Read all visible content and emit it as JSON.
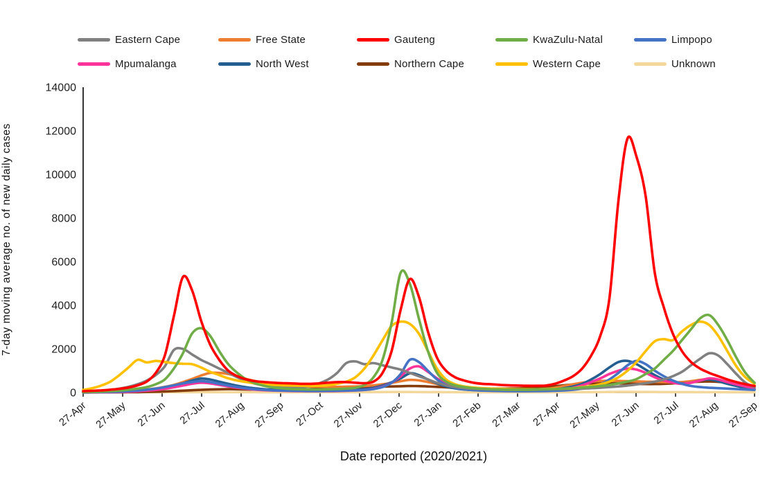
{
  "chart_data": {
    "type": "line",
    "title": "",
    "xlabel": "Date reported (2020/2021)",
    "ylabel": "7-day moving average no. of new daily cases",
    "ylim": [
      0,
      14000
    ],
    "ytick_step": 2000,
    "grid": false,
    "legend_position": "top",
    "x_description": "Weekly samples from 27-Apr-2020 to 27-Sep-2021 (75 points per series)",
    "x_tick_labels": [
      "27-Apr",
      "27-May",
      "27-Jun",
      "27-Jul",
      "27-Aug",
      "27-Sep",
      "27-Oct",
      "27-Nov",
      "27-Dec",
      "27-Jan",
      "27-Feb",
      "27-Mar",
      "27-Apr",
      "27-May",
      "27-Jun",
      "27-Jul",
      "27-Aug",
      "27-Sep"
    ],
    "draw_order": [
      "Unknown",
      "Northern Cape",
      "Free State",
      "North West",
      "Mpumalanga",
      "Limpopo",
      "Eastern Cape",
      "Western Cape",
      "KwaZulu-Natal",
      "Gauteng"
    ],
    "series": [
      {
        "name": "Eastern Cape",
        "color": "#808080",
        "values": [
          30,
          50,
          80,
          120,
          180,
          260,
          380,
          550,
          800,
          1200,
          1950,
          2000,
          1750,
          1500,
          1300,
          1100,
          900,
          700,
          520,
          400,
          320,
          270,
          250,
          240,
          250,
          300,
          420,
          600,
          900,
          1350,
          1430,
          1300,
          1350,
          1250,
          1150,
          1050,
          900,
          750,
          600,
          450,
          330,
          250,
          200,
          170,
          150,
          140,
          130,
          120,
          120,
          120,
          130,
          140,
          150,
          160,
          170,
          180,
          200,
          220,
          250,
          280,
          320,
          370,
          430,
          500,
          600,
          750,
          950,
          1250,
          1550,
          1800,
          1700,
          1300,
          850,
          450,
          250
        ]
      },
      {
        "name": "Free State",
        "color": "#ED7D31",
        "values": [
          15,
          20,
          30,
          40,
          55,
          75,
          100,
          140,
          190,
          260,
          350,
          480,
          620,
          780,
          900,
          900,
          850,
          750,
          620,
          520,
          440,
          380,
          340,
          310,
          290,
          280,
          270,
          260,
          260,
          270,
          280,
          300,
          330,
          380,
          440,
          520,
          580,
          560,
          480,
          390,
          310,
          250,
          210,
          180,
          160,
          150,
          145,
          140,
          140,
          145,
          150,
          170,
          220,
          300,
          380,
          450,
          500,
          530,
          540,
          530,
          520,
          510,
          500,
          490,
          480,
          470,
          480,
          520,
          580,
          620,
          580,
          500,
          420,
          360,
          300
        ]
      },
      {
        "name": "Gauteng",
        "color": "#FF0000",
        "values": [
          60,
          80,
          100,
          130,
          170,
          230,
          330,
          500,
          900,
          1700,
          3500,
          5300,
          4700,
          3300,
          2200,
          1500,
          1000,
          750,
          600,
          520,
          480,
          450,
          430,
          420,
          400,
          400,
          420,
          450,
          480,
          480,
          450,
          430,
          500,
          900,
          1900,
          3800,
          5200,
          4400,
          2800,
          1600,
          1000,
          700,
          550,
          450,
          400,
          380,
          350,
          330,
          320,
          310,
          310,
          320,
          400,
          550,
          750,
          1100,
          1700,
          2600,
          4300,
          8800,
          11650,
          10800,
          9000,
          5500,
          3900,
          2700,
          1900,
          1400,
          1100,
          900,
          750,
          600,
          480,
          380,
          300
        ]
      },
      {
        "name": "KwaZulu-Natal",
        "color": "#70AD47",
        "values": [
          20,
          30,
          40,
          60,
          90,
          130,
          180,
          250,
          380,
          600,
          1100,
          1800,
          2700,
          2950,
          2600,
          1900,
          1300,
          900,
          600,
          420,
          300,
          230,
          190,
          160,
          150,
          140,
          140,
          150,
          160,
          180,
          220,
          350,
          700,
          1500,
          3200,
          5500,
          5000,
          3400,
          1900,
          900,
          500,
          330,
          250,
          200,
          170,
          150,
          140,
          130,
          130,
          130,
          140,
          150,
          160,
          180,
          200,
          230,
          260,
          300,
          350,
          420,
          500,
          620,
          850,
          1100,
          1500,
          1900,
          2400,
          2900,
          3400,
          3550,
          3100,
          2400,
          1600,
          900,
          450
        ]
      },
      {
        "name": "Limpopo",
        "color": "#4472C4",
        "values": [
          10,
          15,
          20,
          30,
          40,
          60,
          90,
          130,
          180,
          250,
          330,
          420,
          480,
          520,
          480,
          400,
          320,
          250,
          190,
          150,
          120,
          100,
          90,
          80,
          75,
          70,
          70,
          75,
          80,
          90,
          100,
          120,
          160,
          250,
          450,
          850,
          1500,
          1400,
          1000,
          600,
          350,
          220,
          150,
          110,
          90,
          80,
          70,
          65,
          60,
          60,
          65,
          70,
          80,
          100,
          130,
          180,
          250,
          380,
          600,
          900,
          1250,
          1450,
          1300,
          1000,
          750,
          550,
          400,
          300,
          250,
          220,
          200,
          180,
          160,
          140,
          120
        ]
      },
      {
        "name": "Mpumalanga",
        "color": "#FF3399",
        "values": [
          5,
          8,
          12,
          18,
          25,
          35,
          55,
          85,
          120,
          170,
          240,
          320,
          400,
          450,
          420,
          350,
          280,
          220,
          170,
          130,
          105,
          90,
          80,
          70,
          65,
          60,
          60,
          65,
          70,
          80,
          95,
          120,
          170,
          270,
          450,
          750,
          1100,
          1200,
          950,
          650,
          420,
          270,
          180,
          130,
          100,
          85,
          75,
          70,
          70,
          75,
          80,
          90,
          110,
          150,
          220,
          330,
          480,
          650,
          850,
          1000,
          1100,
          1050,
          900,
          700,
          550,
          450,
          400,
          450,
          550,
          650,
          600,
          480,
          370,
          280,
          200
        ]
      },
      {
        "name": "North West",
        "color": "#255E91",
        "values": [
          5,
          8,
          12,
          18,
          25,
          40,
          60,
          90,
          130,
          200,
          300,
          420,
          550,
          640,
          600,
          500,
          400,
          310,
          240,
          190,
          150,
          130,
          110,
          100,
          95,
          90,
          90,
          95,
          100,
          110,
          130,
          160,
          220,
          320,
          470,
          650,
          880,
          800,
          600,
          420,
          280,
          190,
          140,
          110,
          95,
          85,
          80,
          80,
          85,
          90,
          100,
          120,
          150,
          200,
          280,
          400,
          600,
          850,
          1150,
          1400,
          1450,
          1300,
          1050,
          800,
          600,
          480,
          420,
          450,
          550,
          600,
          520,
          400,
          300,
          220,
          160
        ]
      },
      {
        "name": "Northern Cape",
        "color": "#843C0C",
        "values": [
          5,
          6,
          8,
          10,
          12,
          15,
          20,
          28,
          38,
          50,
          65,
          85,
          105,
          125,
          140,
          150,
          155,
          150,
          140,
          135,
          130,
          130,
          135,
          140,
          150,
          160,
          175,
          190,
          210,
          230,
          240,
          250,
          260,
          270,
          280,
          290,
          300,
          295,
          280,
          260,
          240,
          220,
          200,
          190,
          185,
          180,
          180,
          185,
          190,
          200,
          220,
          250,
          290,
          330,
          370,
          400,
          420,
          430,
          430,
          420,
          410,
          400,
          390,
          390,
          400,
          420,
          450,
          480,
          500,
          510,
          490,
          450,
          400,
          350,
          300
        ]
      },
      {
        "name": "Western Cape",
        "color": "#FFC000",
        "values": [
          120,
          200,
          320,
          500,
          800,
          1150,
          1500,
          1380,
          1450,
          1400,
          1350,
          1320,
          1300,
          1150,
          950,
          800,
          650,
          550,
          480,
          420,
          380,
          350,
          330,
          320,
          310,
          300,
          310,
          330,
          400,
          500,
          700,
          1100,
          1700,
          2400,
          3050,
          3250,
          3150,
          2700,
          1900,
          1100,
          600,
          380,
          280,
          230,
          200,
          180,
          170,
          160,
          150,
          150,
          150,
          160,
          170,
          180,
          200,
          250,
          300,
          380,
          500,
          700,
          1000,
          1400,
          1900,
          2350,
          2450,
          2400,
          2800,
          3100,
          3250,
          3100,
          2600,
          1900,
          1200,
          700,
          400
        ]
      },
      {
        "name": "Unknown",
        "color": "#F3D79B",
        "values": [
          10,
          10,
          12,
          12,
          14,
          15,
          15,
          16,
          16,
          18,
          18,
          20,
          20,
          20,
          18,
          18,
          16,
          16,
          15,
          15,
          14,
          14,
          14,
          14,
          15,
          15,
          16,
          16,
          18,
          18,
          20,
          20,
          22,
          22,
          25,
          25,
          25,
          22,
          20,
          18,
          16,
          15,
          14,
          14,
          13,
          13,
          12,
          12,
          12,
          12,
          13,
          13,
          14,
          15,
          16,
          18,
          20,
          22,
          25,
          28,
          30,
          28,
          26,
          24,
          22,
          20,
          18,
          18,
          16,
          16,
          15,
          14,
          13,
          12,
          12
        ]
      }
    ]
  }
}
